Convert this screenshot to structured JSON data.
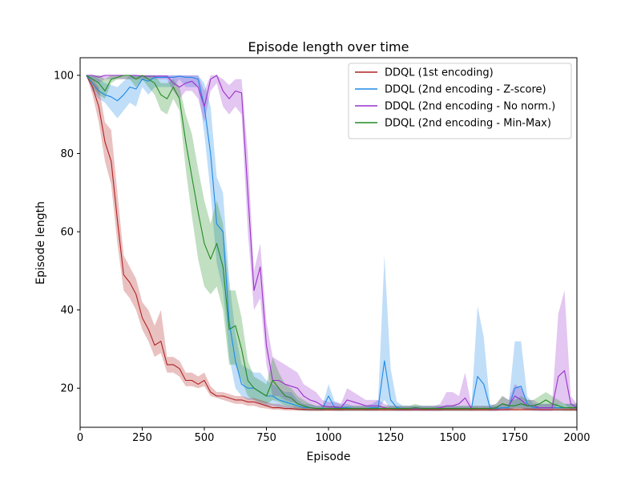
{
  "chart_data": {
    "type": "line",
    "title": "Episode length over time",
    "xlabel": "Episode",
    "ylabel": "Episode length",
    "xlim": [
      0,
      2000
    ],
    "ylim": [
      10,
      104.5
    ],
    "xticks": [
      0,
      250,
      500,
      750,
      1000,
      1250,
      1500,
      1750,
      2000
    ],
    "yticks": [
      20,
      40,
      60,
      80,
      100
    ],
    "grid": false,
    "legend_position": "top-right",
    "x": [
      25,
      50,
      75,
      100,
      125,
      150,
      175,
      200,
      225,
      250,
      275,
      300,
      325,
      350,
      375,
      400,
      425,
      450,
      475,
      500,
      525,
      550,
      575,
      600,
      625,
      650,
      675,
      700,
      725,
      750,
      775,
      800,
      825,
      850,
      875,
      900,
      925,
      950,
      975,
      1000,
      1025,
      1050,
      1075,
      1100,
      1125,
      1150,
      1175,
      1200,
      1225,
      1250,
      1275,
      1300,
      1325,
      1350,
      1375,
      1400,
      1425,
      1450,
      1475,
      1500,
      1525,
      1550,
      1575,
      1600,
      1625,
      1650,
      1675,
      1700,
      1725,
      1750,
      1775,
      1800,
      1825,
      1850,
      1875,
      1900,
      1925,
      1950,
      1975,
      2000
    ],
    "series": [
      {
        "name": "DDQL (1st encoding)",
        "color": "#b22222",
        "values": [
          100,
          97,
          92,
          83,
          78,
          63,
          49,
          47,
          44,
          38,
          35,
          31,
          32,
          26,
          26,
          25,
          22,
          22,
          21,
          22,
          19,
          18,
          18,
          17.5,
          17,
          17,
          16.5,
          16.5,
          16,
          15.5,
          15,
          15,
          14.8,
          14.8,
          14.6,
          14.6,
          14.5,
          14.5,
          14.5,
          14.5,
          14.5,
          14.5,
          14.5,
          14.5,
          14.5,
          14.5,
          14.5,
          14.5,
          14.5,
          14.5,
          14.5,
          14.5,
          14.5,
          14.5,
          14.5,
          14.5,
          14.5,
          14.5,
          14.5,
          14.5,
          14.5,
          14.5,
          14.5,
          14.5,
          14.5,
          14.5,
          14.5,
          14.5,
          14.5,
          14.5,
          14.5,
          14.5,
          14.5,
          14.5,
          14.5,
          14.5,
          14.5,
          14.5,
          14.5,
          14.5
        ],
        "lower": [
          100,
          95,
          88,
          78,
          72,
          57,
          45,
          43,
          40,
          35,
          32,
          28,
          29,
          24,
          24,
          23,
          20.5,
          20.5,
          20,
          20.5,
          18,
          17.5,
          17,
          16.5,
          16,
          16,
          15.5,
          15.5,
          15,
          14.8,
          14.5,
          14.5,
          14.3,
          14.3,
          14.2,
          14.2,
          14.2,
          14.2,
          14.2,
          14.2,
          14.2,
          14.2,
          14.2,
          14.2,
          14.2,
          14.2,
          14.2,
          14.2,
          14.2,
          14.2,
          14.2,
          14.2,
          14.2,
          14.2,
          14.2,
          14.2,
          14.2,
          14.2,
          14.2,
          14.2,
          14.2,
          14.2,
          14.2,
          14.2,
          14.2,
          14.2,
          14.2,
          14.2,
          14.2,
          14.2,
          14.2,
          14.2,
          14.2,
          14.2,
          14.2,
          14.2,
          14.2,
          14.2,
          14.2,
          14.2
        ],
        "upper": [
          100,
          99,
          97,
          88,
          86,
          70,
          54,
          51,
          48,
          42,
          40,
          36,
          40,
          28,
          28,
          27,
          24,
          24,
          23,
          24,
          20.5,
          19,
          19,
          18.5,
          18,
          18,
          17.5,
          17.5,
          17,
          16.5,
          16,
          16,
          15.5,
          15.5,
          15.2,
          15.2,
          15,
          15,
          15,
          15,
          15,
          15,
          15,
          15,
          15,
          15,
          15,
          15,
          15,
          15,
          15,
          15,
          15,
          15,
          15,
          15,
          15,
          15,
          15,
          15,
          15,
          15,
          15,
          15,
          15,
          15,
          15,
          15,
          15,
          15,
          15,
          15,
          15,
          15,
          15,
          15,
          15,
          15,
          15,
          15
        ]
      },
      {
        "name": "DDQL (2nd encoding - Z-score)",
        "color": "#1e88e5",
        "values": [
          100,
          98,
          96,
          95,
          94.5,
          93.5,
          95,
          97,
          96.5,
          99,
          98.5,
          99.5,
          99.5,
          99.5,
          99.5,
          99.8,
          99.5,
          99.5,
          99,
          92,
          80,
          62,
          60,
          37,
          27,
          21,
          20,
          20,
          19,
          18,
          18,
          17,
          16.5,
          16,
          15.5,
          15,
          15,
          14.8,
          14.7,
          18,
          15,
          15,
          15,
          14.8,
          14.8,
          14.8,
          15,
          15,
          27,
          17,
          15,
          14.8,
          14.8,
          14.8,
          14.8,
          14.8,
          14.8,
          14.8,
          14.8,
          14.8,
          14.8,
          14.8,
          14.8,
          23,
          21,
          15,
          14.8,
          15,
          15,
          20,
          20.5,
          16,
          15,
          15,
          15,
          15,
          15,
          15,
          15,
          15
        ],
        "lower": [
          100,
          96,
          94,
          93,
          91,
          89,
          91,
          93,
          92,
          97,
          95,
          97,
          97,
          97,
          97,
          99,
          97,
          97,
          97,
          85,
          70,
          52,
          45,
          28,
          20,
          18,
          17,
          17,
          16,
          15.5,
          15.5,
          15,
          15,
          14.5,
          14.5,
          14.2,
          14.2,
          14.2,
          14.2,
          14.5,
          14.2,
          14.2,
          14.2,
          14.2,
          14.2,
          14.2,
          14.2,
          14.2,
          17,
          14.5,
          14.2,
          14.2,
          14.2,
          14.2,
          14.2,
          14.2,
          14.2,
          14.2,
          14.2,
          14.2,
          14.2,
          14.2,
          14.2,
          15,
          15,
          14.2,
          14.2,
          14.2,
          14.2,
          15,
          15,
          14.5,
          14.2,
          14.2,
          14.2,
          14.2,
          14.2,
          14.2,
          14.2,
          14.2
        ],
        "upper": [
          100,
          100,
          99,
          98,
          97.5,
          97,
          98.5,
          100,
          100,
          100,
          100,
          100,
          100,
          100,
          100,
          100,
          100,
          100,
          100,
          98,
          92,
          74,
          70,
          48,
          34,
          26,
          25,
          24,
          24,
          22,
          21,
          20,
          19,
          19,
          17,
          16,
          16,
          15.5,
          15.5,
          21,
          16.5,
          16,
          16,
          15.5,
          15.5,
          15.5,
          16,
          17,
          54,
          25,
          16.5,
          15.5,
          15.5,
          15.5,
          15.5,
          15.5,
          15.5,
          15.5,
          15.5,
          15.5,
          15.5,
          15.5,
          15.5,
          41,
          33,
          16,
          15.5,
          16,
          16,
          32,
          32,
          18,
          16,
          16,
          16,
          16,
          16,
          16,
          16,
          16
        ]
      },
      {
        "name": "DDQL (2nd encoding - No norm.)",
        "color": "#9932cc",
        "values": [
          100,
          100,
          99.5,
          100,
          100,
          100,
          100,
          100,
          100,
          99.8,
          99.8,
          99.8,
          99.8,
          99.8,
          98,
          97,
          98,
          98.5,
          97,
          92,
          99,
          100,
          96,
          94,
          96,
          95.5,
          70,
          45,
          51,
          31,
          22,
          22,
          21,
          20.5,
          20,
          18,
          17,
          16.5,
          15.5,
          15.2,
          15.2,
          15,
          17,
          16.5,
          16,
          15.5,
          15.5,
          15.5,
          15,
          14.8,
          14.8,
          14.8,
          14.8,
          14.8,
          14.8,
          14.8,
          14.8,
          15,
          15.5,
          15.5,
          16,
          17.5,
          14.8,
          14.8,
          14.8,
          14.8,
          15,
          16,
          15.5,
          18,
          17,
          15.5,
          15.5,
          15,
          15,
          15,
          23,
          24.5,
          16,
          15
        ],
        "lower": [
          100,
          99,
          98,
          99,
          99,
          99,
          99,
          99,
          99,
          99,
          99,
          99,
          99,
          99,
          96,
          94,
          96,
          96,
          94,
          88,
          96,
          98,
          92,
          90,
          92,
          90,
          60,
          40,
          43,
          26,
          18,
          18,
          17,
          16.5,
          16,
          15,
          15,
          14.5,
          14.3,
          14.3,
          14.3,
          14.2,
          14.5,
          14.5,
          14.5,
          14.3,
          14.3,
          14.3,
          14.2,
          14.2,
          14.2,
          14.2,
          14.2,
          14.2,
          14.2,
          14.2,
          14.2,
          14.2,
          14.5,
          14.5,
          14.5,
          14.8,
          14.2,
          14.2,
          14.2,
          14.2,
          14.2,
          14.5,
          14.5,
          15,
          14.8,
          14.5,
          14.5,
          14.2,
          14.2,
          14.2,
          16,
          16,
          14.5,
          14.2
        ],
        "upper": [
          100,
          100,
          100,
          100,
          100,
          100,
          100,
          100,
          100,
          100,
          100,
          100,
          100,
          100,
          100,
          100,
          100,
          100,
          100,
          96,
          100,
          100,
          99,
          97.5,
          99,
          99,
          80,
          50,
          57,
          37,
          28,
          27,
          26,
          25,
          24,
          21,
          20,
          19,
          17,
          16.5,
          16.5,
          16,
          20,
          19,
          18,
          17,
          17,
          17,
          16,
          15.5,
          15.5,
          15.5,
          15.5,
          15.5,
          15.5,
          15.5,
          15.5,
          16,
          19,
          19,
          18,
          24,
          15.5,
          15.5,
          15.5,
          15.5,
          16,
          18,
          17,
          21,
          20,
          17,
          17,
          16,
          16,
          16,
          39,
          45,
          18,
          16
        ]
      },
      {
        "name": "DDQL (2nd encoding - Min-Max)",
        "color": "#228b22",
        "values": [
          100,
          99,
          98,
          96,
          99,
          99.5,
          100,
          100,
          99,
          100,
          99,
          98,
          95,
          94,
          97,
          94,
          83,
          74,
          65,
          57,
          53,
          57,
          51,
          35,
          36,
          30,
          22,
          20,
          19,
          18,
          22,
          20,
          18,
          17.5,
          16,
          15.5,
          15,
          14.8,
          14.8,
          14.8,
          14.8,
          14.8,
          14.8,
          14.8,
          14.8,
          14.8,
          14.8,
          14.8,
          14.8,
          14.8,
          14.8,
          14.8,
          14.8,
          15,
          14.8,
          14.8,
          14.8,
          14.8,
          14.8,
          14.8,
          14.8,
          14.8,
          14.8,
          14.8,
          14.8,
          14.8,
          15,
          16,
          15.5,
          15.5,
          16,
          15.5,
          15.5,
          16,
          17,
          16,
          15.5,
          15,
          15,
          15
        ],
        "lower": [
          100,
          97,
          95,
          94,
          98,
          99,
          99,
          99,
          97,
          99,
          97,
          95,
          91,
          90,
          94,
          91,
          76,
          64,
          53,
          46,
          44,
          46,
          40,
          26,
          26,
          22,
          18,
          17,
          16.5,
          16,
          17,
          16.5,
          15.5,
          15.5,
          14.5,
          14.3,
          14.2,
          14.2,
          14.2,
          14.2,
          14.2,
          14.2,
          14.2,
          14.2,
          14.2,
          14.2,
          14.2,
          14.2,
          14.2,
          14.2,
          14.2,
          14.2,
          14.2,
          14.3,
          14.2,
          14.2,
          14.2,
          14.2,
          14.2,
          14.2,
          14.2,
          14.2,
          14.2,
          14.2,
          14.2,
          14.2,
          14.3,
          14.8,
          14.5,
          14.5,
          14.8,
          14.5,
          14.5,
          14.8,
          15,
          14.8,
          14.5,
          14.2,
          14.2,
          14.2
        ],
        "upper": [
          100,
          100,
          100,
          99,
          100,
          100,
          100,
          100,
          100,
          100,
          100,
          100,
          98,
          98,
          99,
          97,
          90,
          85,
          76,
          68,
          62,
          68,
          62,
          45,
          45,
          38,
          27,
          23,
          22,
          21,
          28,
          24,
          21,
          20,
          18,
          17,
          16,
          15.5,
          15.5,
          15.5,
          15.5,
          15.5,
          15.5,
          15.5,
          15.5,
          15.5,
          15.5,
          15.5,
          15.5,
          15.5,
          15.5,
          15.5,
          15.5,
          16,
          15.5,
          15.5,
          15.5,
          15.5,
          15.5,
          15.5,
          15.5,
          15.5,
          15.5,
          15.5,
          15.5,
          15.5,
          16,
          18,
          17,
          17,
          18,
          17,
          17,
          18,
          19,
          18,
          17,
          16,
          16,
          16
        ]
      }
    ]
  }
}
